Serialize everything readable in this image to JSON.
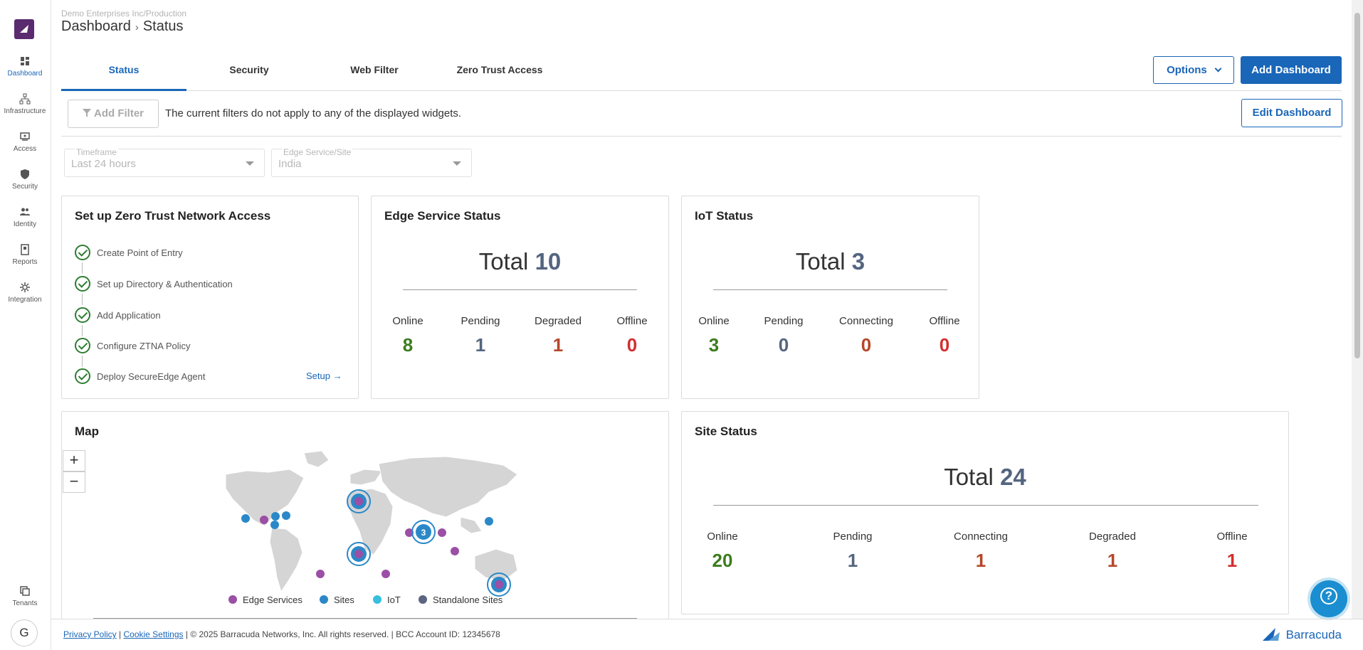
{
  "header": {
    "breadcrumb_sub": "Demo Enterprises Inc/Production",
    "breadcrumb_root": "Dashboard",
    "breadcrumb_current": "Status"
  },
  "sidebar": {
    "items": [
      {
        "label": "Dashboard",
        "icon": "dashboard-icon"
      },
      {
        "label": "Infrastructure",
        "icon": "infrastructure-icon"
      },
      {
        "label": "Access",
        "icon": "access-icon"
      },
      {
        "label": "Security",
        "icon": "shield-icon"
      },
      {
        "label": "Identity",
        "icon": "people-icon"
      },
      {
        "label": "Reports",
        "icon": "report-icon"
      },
      {
        "label": "Integration",
        "icon": "integration-icon"
      }
    ],
    "tenants": "Tenants",
    "avatar_initial": "G"
  },
  "tabs": [
    "Status",
    "Security",
    "Web Filter",
    "Zero Trust Access"
  ],
  "toolbar": {
    "options_label": "Options",
    "add_dashboard_label": "Add Dashboard",
    "edit_dashboard_label": "Edit Dashboard",
    "add_filter_label": "Add Filter",
    "filter_message": "The current filters do not apply to any of the displayed widgets."
  },
  "filters": {
    "timeframe": {
      "label": "Timeframe",
      "value": "Last 24 hours"
    },
    "edge_service": {
      "label": "Edge Service/Site",
      "value": "India"
    }
  },
  "ztna": {
    "title": "Set up Zero Trust Network Access",
    "steps": [
      "Create Point of Entry",
      "Set up Directory & Authentication",
      "Add Application",
      "Configure ZTNA Policy",
      "Deploy SecureEdge Agent"
    ],
    "setup_link": "Setup"
  },
  "edge_status": {
    "title": "Edge Service Status",
    "total_label": "Total",
    "total": "10",
    "stats": [
      {
        "label": "Online",
        "value": "8",
        "color": "#3c7d1f"
      },
      {
        "label": "Pending",
        "value": "1",
        "color": "#546580"
      },
      {
        "label": "Degraded",
        "value": "1",
        "color": "#b7472a"
      },
      {
        "label": "Offline",
        "value": "0",
        "color": "#d32f2f"
      }
    ]
  },
  "iot_status": {
    "title": "IoT Status",
    "total_label": "Total",
    "total": "3",
    "stats": [
      {
        "label": "Online",
        "value": "3",
        "color": "#3c7d1f"
      },
      {
        "label": "Pending",
        "value": "0",
        "color": "#546580"
      },
      {
        "label": "Connecting",
        "value": "0",
        "color": "#b7472a"
      },
      {
        "label": "Offline",
        "value": "0",
        "color": "#d32f2f"
      }
    ]
  },
  "map": {
    "title": "Map",
    "zoom_in": "+",
    "zoom_out": "−",
    "cluster_count": "3",
    "legend": [
      {
        "label": "Edge Services",
        "color": "#9b4fa5"
      },
      {
        "label": "Sites",
        "color": "#2b88c8"
      },
      {
        "label": "IoT",
        "color": "#35c0de"
      },
      {
        "label": "Standalone Sites",
        "color": "#5a6580"
      }
    ]
  },
  "site_status": {
    "title": "Site Status",
    "total_label": "Total",
    "total": "24",
    "stats": [
      {
        "label": "Online",
        "value": "20",
        "color": "#3c7d1f"
      },
      {
        "label": "Pending",
        "value": "1",
        "color": "#546580"
      },
      {
        "label": "Connecting",
        "value": "1",
        "color": "#b7472a"
      },
      {
        "label": "Degraded",
        "value": "1",
        "color": "#b7472a"
      },
      {
        "label": "Offline",
        "value": "1",
        "color": "#d32f2f"
      }
    ]
  },
  "footer": {
    "privacy": "Privacy Policy",
    "cookie": "Cookie Settings",
    "copyright": "| © 2025 Barracuda Networks, Inc. All rights reserved. | BCC Account ID: 12345678",
    "brand": "Barracuda"
  }
}
